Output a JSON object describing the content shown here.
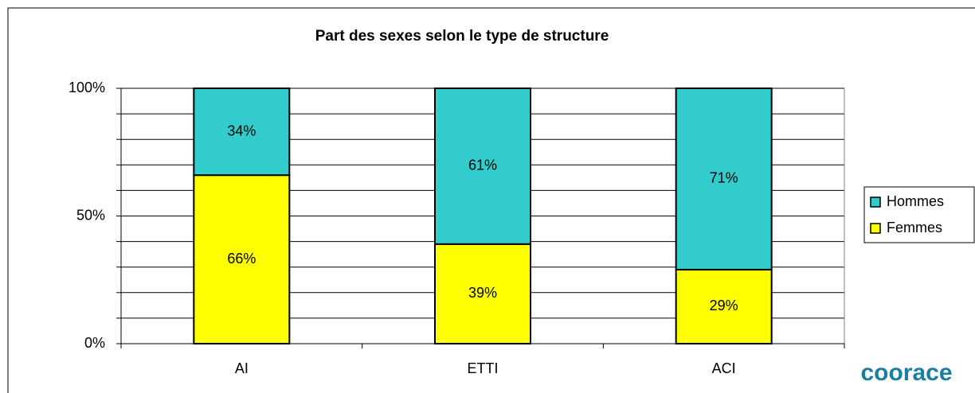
{
  "chart_data": {
    "type": "stacked_bar",
    "title": "Part des sexes selon le type de structure",
    "categories": [
      "AI",
      "ETTI",
      "ACI"
    ],
    "series": [
      {
        "name": "Femmes",
        "color": "#ffff00",
        "values": [
          66,
          39,
          29
        ],
        "value_labels": [
          "66%",
          "39%",
          "29%"
        ]
      },
      {
        "name": "Hommes",
        "color": "#33cccc",
        "values": [
          34,
          61,
          71
        ],
        "value_labels": [
          "34%",
          "61%",
          "71%"
        ]
      }
    ],
    "ylim": [
      0,
      100
    ],
    "yticks": [
      {
        "value": 0,
        "label": "0%"
      },
      {
        "value": 50,
        "label": "50%"
      },
      {
        "value": 100,
        "label": "100%"
      }
    ],
    "minor_yticks": [
      10,
      20,
      30,
      40,
      60,
      70,
      80,
      90
    ],
    "grid": true,
    "legend": "right",
    "logo": "coorace"
  }
}
